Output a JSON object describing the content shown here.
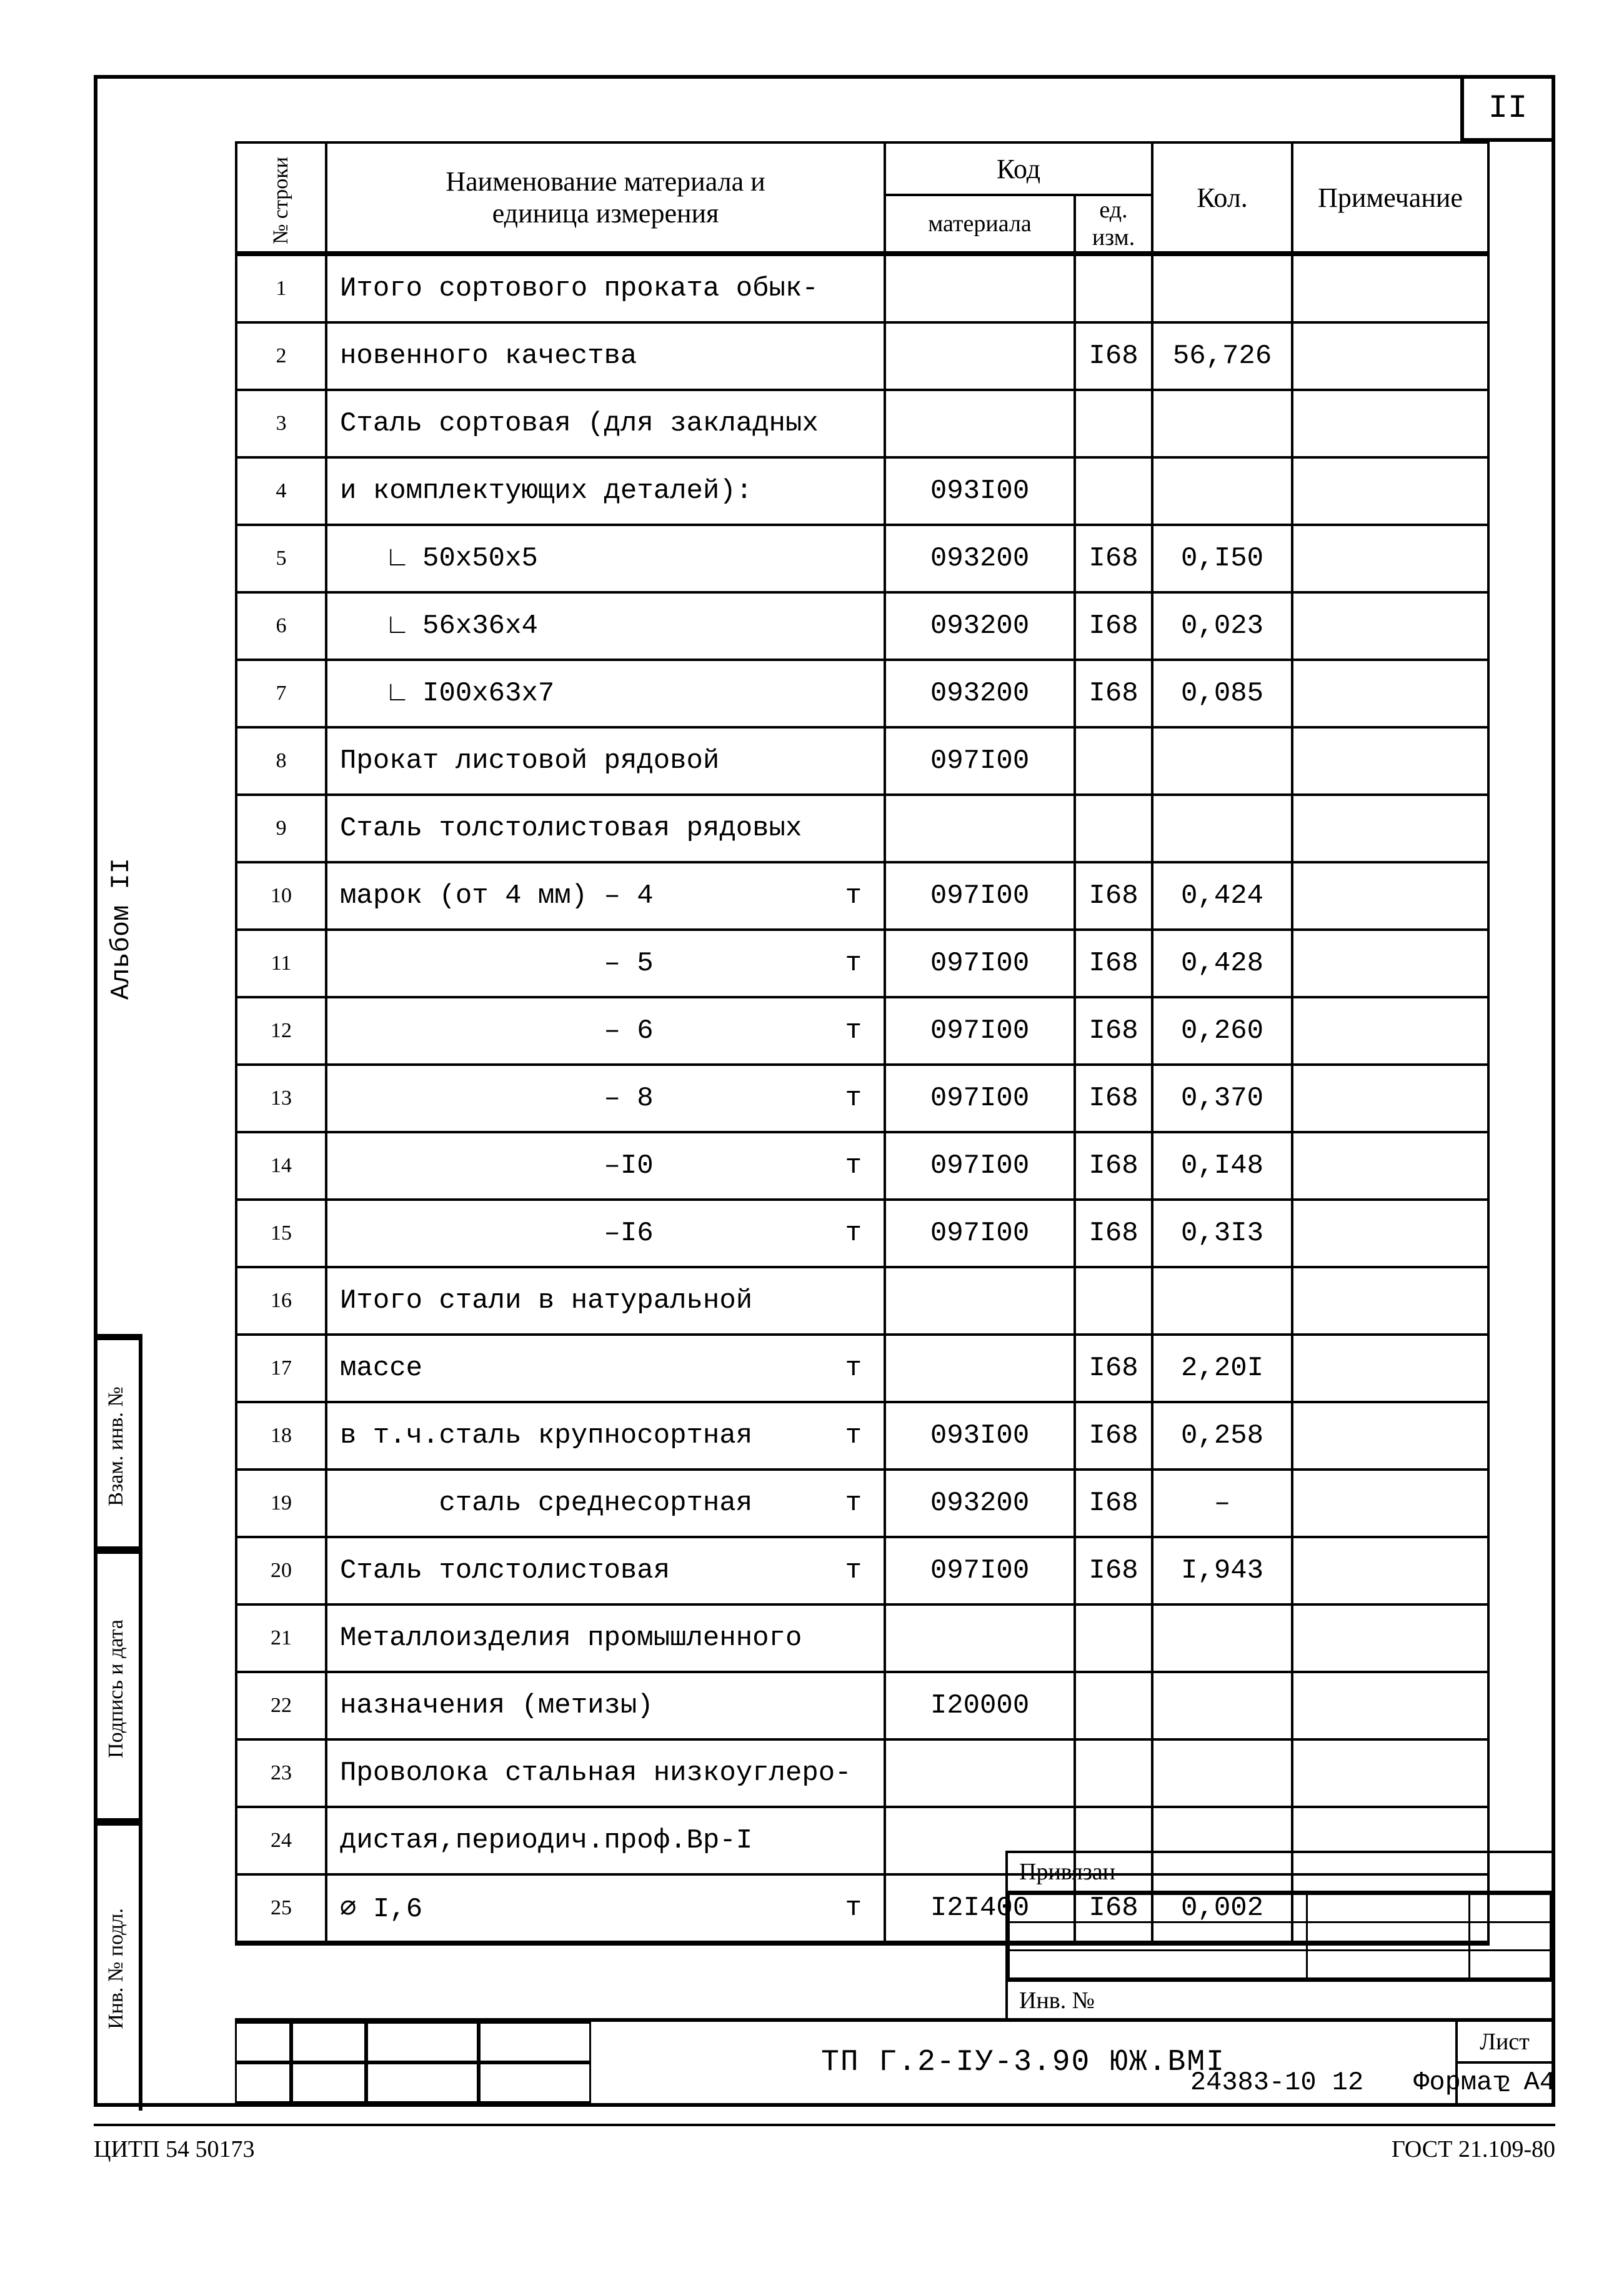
{
  "page_number_box": "II",
  "headers": {
    "row_no": "№ строки",
    "name": "Наименование материала  и\nединица измерения",
    "code": "Код",
    "material": "материала",
    "uom": "ед.\nизм.",
    "qty": "Кол.",
    "note": "Примечание"
  },
  "rows": [
    {
      "n": "1",
      "name": "Итого сортового проката обык-",
      "mat": "",
      "uom": "",
      "qty": "",
      "unit": ""
    },
    {
      "n": "2",
      "name": "новенного качества",
      "mat": "",
      "uom": "I68",
      "qty": "56,726",
      "unit": ""
    },
    {
      "n": "3",
      "name": "Сталь сортовая (для закладных",
      "mat": "",
      "uom": "",
      "qty": "",
      "unit": ""
    },
    {
      "n": "4",
      "name": "и комплектующих деталей):",
      "mat": "093I00",
      "uom": "",
      "qty": "",
      "unit": ""
    },
    {
      "n": "5",
      "name": "   ∟ 50х50х5",
      "mat": "093200",
      "uom": "I68",
      "qty": "0,I50",
      "unit": ""
    },
    {
      "n": "6",
      "name": "   ∟ 56х36х4",
      "mat": "093200",
      "uom": "I68",
      "qty": "0,023",
      "unit": ""
    },
    {
      "n": "7",
      "name": "   ∟ I00х63х7",
      "mat": "093200",
      "uom": "I68",
      "qty": "0,085",
      "unit": ""
    },
    {
      "n": "8",
      "name": "Прокат листовой рядовой",
      "mat": "097I00",
      "uom": "",
      "qty": "",
      "unit": ""
    },
    {
      "n": "9",
      "name": "Сталь толстолистовая рядовых",
      "mat": "",
      "uom": "",
      "qty": "",
      "unit": ""
    },
    {
      "n": "10",
      "name": "марок (от 4 мм) – 4",
      "mat": "097I00",
      "uom": "I68",
      "qty": "0,424",
      "unit": "т"
    },
    {
      "n": "11",
      "name": "                – 5",
      "mat": "097I00",
      "uom": "I68",
      "qty": "0,428",
      "unit": "т"
    },
    {
      "n": "12",
      "name": "                – 6",
      "mat": "097I00",
      "uom": "I68",
      "qty": "0,260",
      "unit": "т"
    },
    {
      "n": "13",
      "name": "                – 8",
      "mat": "097I00",
      "uom": "I68",
      "qty": "0,370",
      "unit": "т"
    },
    {
      "n": "14",
      "name": "                –I0",
      "mat": "097I00",
      "uom": "I68",
      "qty": "0,I48",
      "unit": "т"
    },
    {
      "n": "15",
      "name": "                –I6",
      "mat": "097I00",
      "uom": "I68",
      "qty": "0,3I3",
      "unit": "т"
    },
    {
      "n": "16",
      "name": "Итого стали в натуральной",
      "mat": "",
      "uom": "",
      "qty": "",
      "unit": ""
    },
    {
      "n": "17",
      "name": "массе",
      "mat": "",
      "uom": "I68",
      "qty": "2,20I",
      "unit": "т"
    },
    {
      "n": "18",
      "name": "в т.ч.сталь крупносортная",
      "mat": "093I00",
      "uom": "I68",
      "qty": "0,258",
      "unit": "т"
    },
    {
      "n": "19",
      "name": "      сталь среднесортная",
      "mat": "093200",
      "uom": "I68",
      "qty": "–",
      "unit": "т"
    },
    {
      "n": "20",
      "name": "Сталь толстолистовая",
      "mat": "097I00",
      "uom": "I68",
      "qty": "I,943",
      "unit": "т"
    },
    {
      "n": "21",
      "name": "Металлоизделия промышленного",
      "mat": "",
      "uom": "",
      "qty": "",
      "unit": ""
    },
    {
      "n": "22",
      "name": "назначения (метизы)",
      "mat": "I20000",
      "uom": "",
      "qty": "",
      "unit": ""
    },
    {
      "n": "23",
      "name": "Проволока стальная низкоуглеро-",
      "mat": "",
      "uom": "",
      "qty": "",
      "unit": ""
    },
    {
      "n": "24",
      "name": "дистая,периодич.проф.Вр-I",
      "mat": "",
      "uom": "",
      "qty": "",
      "unit": ""
    },
    {
      "n": "25",
      "name": "∅ I,6",
      "mat": "I2I400",
      "uom": "I68",
      "qty": "0,002",
      "unit": "т"
    }
  ],
  "side_labels": {
    "album": "Альбом II",
    "vzam": "Взам. инв. №",
    "sign": "Подпись и дата",
    "inv": "Инв. № подл."
  },
  "attach": {
    "header": "Привязан",
    "inv": "Инв. №"
  },
  "doc_title": "ТП Г.2-IУ-3.90      ЮЖ.ВМI",
  "sheet": {
    "label": "Лист",
    "num": "2"
  },
  "under_footer": {
    "code": "24383-10  12",
    "format": "Формат А4"
  },
  "footer": {
    "left": "ЦИТП 54 50173",
    "right": "ГОСТ 21.109-80"
  }
}
